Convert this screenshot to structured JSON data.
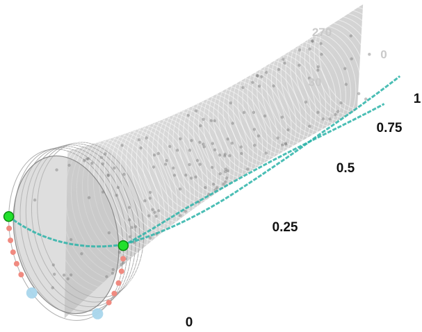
{
  "chart_data": {
    "type": "scatter",
    "projection": "3d-cylindrical",
    "title": "",
    "axis_ticks": [
      "0",
      "0.25",
      "0.5",
      "0.75",
      "1"
    ],
    "angle_ticks": [
      "270",
      "30",
      "0"
    ],
    "series": [
      {
        "points": [
          {
            "t": 0.0,
            "theta": 200
          },
          {
            "t": 0.25,
            "theta": 130
          },
          {
            "t": 0.5,
            "theta": 80
          },
          {
            "t": 0.75,
            "theta": 50
          },
          {
            "t": 1.0,
            "theta": 30
          }
        ]
      },
      {
        "points": [
          {
            "t": 0.0,
            "theta": 15
          },
          {
            "t": 0.25,
            "theta": 25
          },
          {
            "t": 0.5,
            "theta": 40
          },
          {
            "t": 0.75,
            "theta": 55
          },
          {
            "t": 1.0,
            "theta": 70
          }
        ]
      }
    ],
    "marker_colors": {
      "start": "#22e02c",
      "end": "#a9d6ec",
      "mid": "#f08a80",
      "line": "#2bb3a8",
      "surface": "#bcbcbc"
    },
    "grid": true,
    "legend": "none"
  }
}
